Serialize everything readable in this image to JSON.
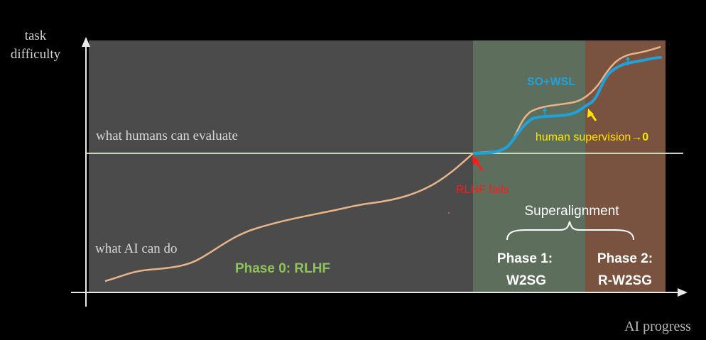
{
  "axes": {
    "y_label_line1": "task",
    "y_label_line2": "difficulty",
    "x_label": "AI progress"
  },
  "labels": {
    "humans_evaluate": "what humans can evaluate",
    "ai_can_do": "what AI can do",
    "rlhf_fails": "RLHF fails",
    "so_wsl": "SO+WSL",
    "human_supervision": "human supervision",
    "arrow_zero": "→0",
    "superalignment": "Superalignment"
  },
  "phases": [
    {
      "line1": "Phase 0:  RLHF",
      "line2": ""
    },
    {
      "line1": "Phase 1:",
      "line2": "W2SG"
    },
    {
      "line1": "Phase 2:",
      "line2": "R-W2SG"
    }
  ],
  "colors": {
    "background": "#000000",
    "phase0_region": "#4b4b4b",
    "phase1_region": "#5e6e5c",
    "phase2_region": "#7a5240",
    "capability_curve": "#e8b488",
    "so_wsl_curve": "#1ea2dc",
    "evaluation_line": "#c7d9b4",
    "phase0_text": "#8ec35c",
    "rlhf_fails": "#ff1a1a",
    "human_supervision": "#ffe600",
    "white_text": "#ffffff",
    "axis_text": "#d0d0d0"
  }
}
